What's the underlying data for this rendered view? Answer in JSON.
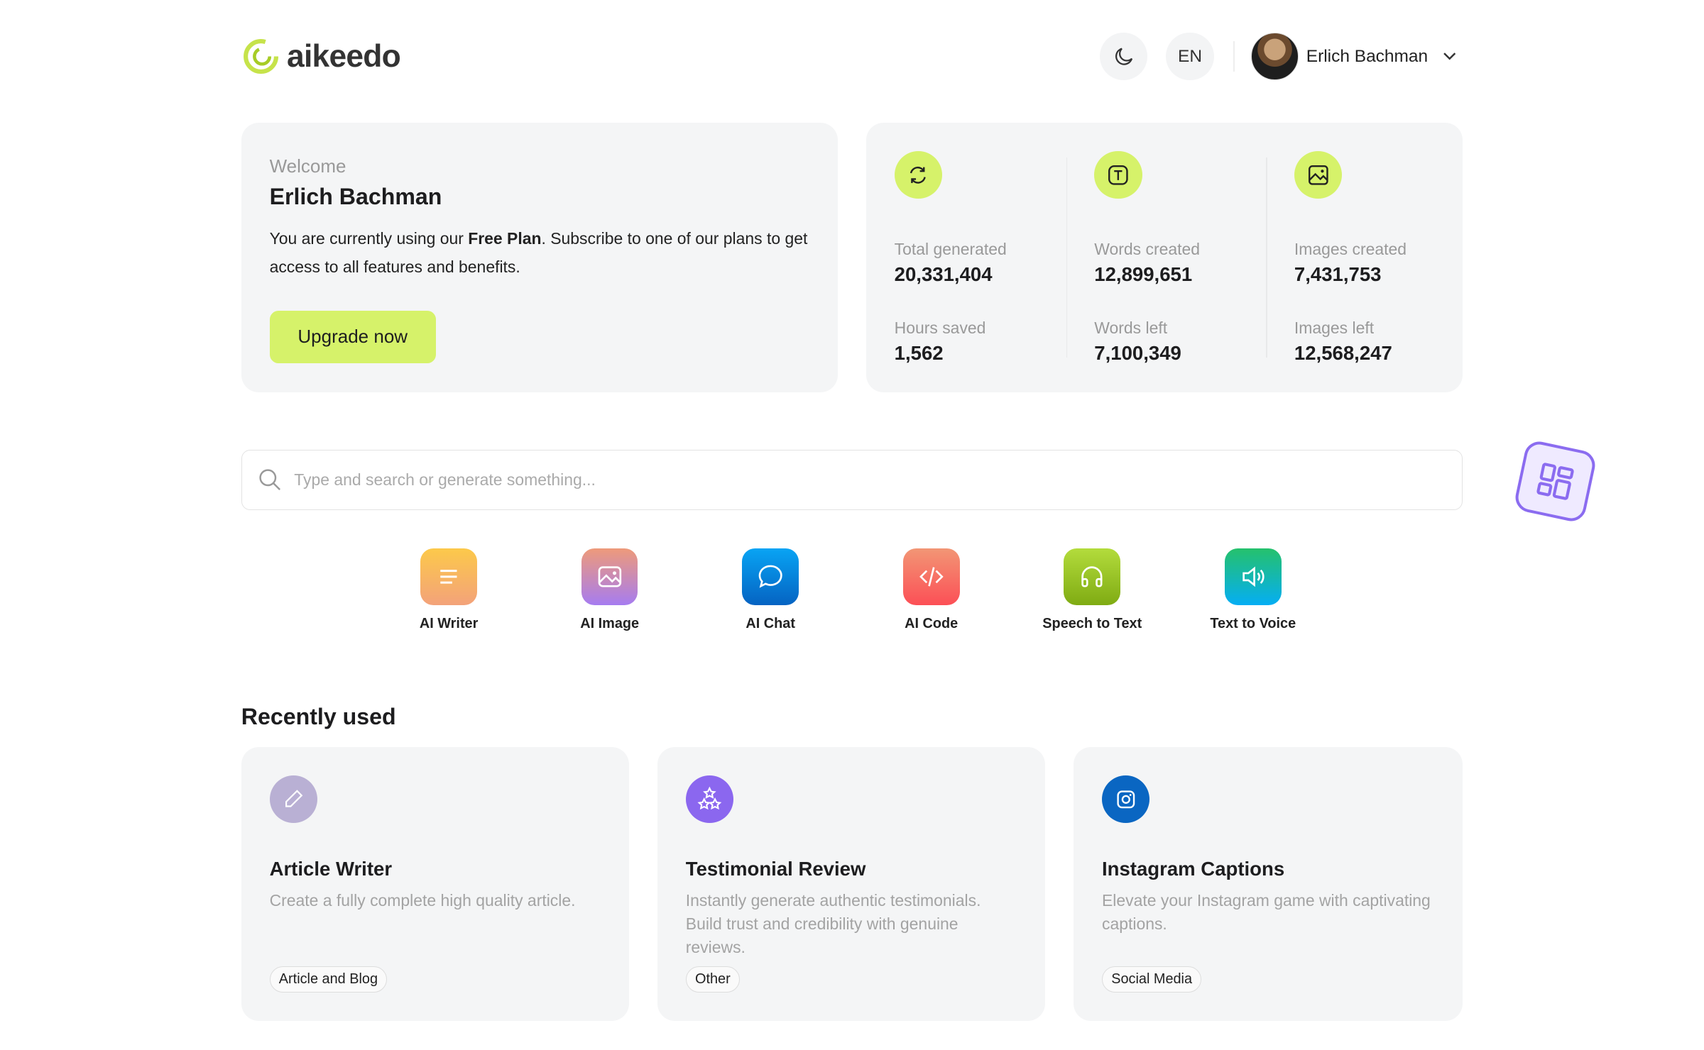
{
  "header": {
    "logo": "aikeedo",
    "theme_toggle_icon": "moon-icon",
    "language": "EN",
    "user_name": "Erlich Bachman"
  },
  "welcome": {
    "label": "Welcome",
    "name": "Erlich Bachman",
    "text_before": "You are currently using our ",
    "plan": "Free Plan",
    "text_after": ". Subscribe to one of our plans to get access to all features and benefits.",
    "upgrade": "Upgrade now"
  },
  "stats": [
    {
      "icon": "refresh-icon",
      "label1": "Total generated",
      "value1": "20,331,404",
      "label2": "Hours saved",
      "value2": "1,562"
    },
    {
      "icon": "text-icon",
      "label1": "Words created",
      "value1": "12,899,651",
      "label2": "Words left",
      "value2": "7,100,349"
    },
    {
      "icon": "image-icon",
      "label1": "Images created",
      "value1": "7,431,753",
      "label2": "Images left",
      "value2": "12,568,247"
    }
  ],
  "search": {
    "placeholder": "Type and search or generate something..."
  },
  "tools": [
    {
      "label": "AI Writer",
      "icon": "lines-icon",
      "colors": [
        "#fcc94a",
        "#f3a27a"
      ]
    },
    {
      "label": "AI Image",
      "icon": "image-icon",
      "colors": [
        "#ee9a7a",
        "#a67cf0"
      ]
    },
    {
      "label": "AI Chat",
      "icon": "chat-bubble-icon",
      "colors": [
        "#08a4f4",
        "#0563c2"
      ]
    },
    {
      "label": "AI Code",
      "icon": "code-icon",
      "colors": [
        "#f29675",
        "#fc4f56"
      ]
    },
    {
      "label": "Speech to Text",
      "icon": "headphones-icon",
      "colors": [
        "#b3dc3c",
        "#7fab13"
      ]
    },
    {
      "label": "Text to Voice",
      "icon": "speaker-icon",
      "colors": [
        "#25c16c",
        "#05aef4"
      ]
    }
  ],
  "recent": {
    "heading": "Recently used",
    "items": [
      {
        "title": "Article Writer",
        "desc": "Create a fully complete high quality article.",
        "tag": "Article and Blog",
        "icon": "pencil-icon",
        "color": "#b9b0d4"
      },
      {
        "title": "Testimonial Review",
        "desc": "Instantly generate authentic testimonials. Build trust and credibility with genuine reviews.",
        "tag": "Other",
        "icon": "stars-icon",
        "color": "#8b67ef"
      },
      {
        "title": "Instagram Captions",
        "desc": "Elevate your Instagram game with captivating captions.",
        "tag": "Social Media",
        "icon": "instagram-icon",
        "color": "#0a66c2"
      }
    ]
  }
}
